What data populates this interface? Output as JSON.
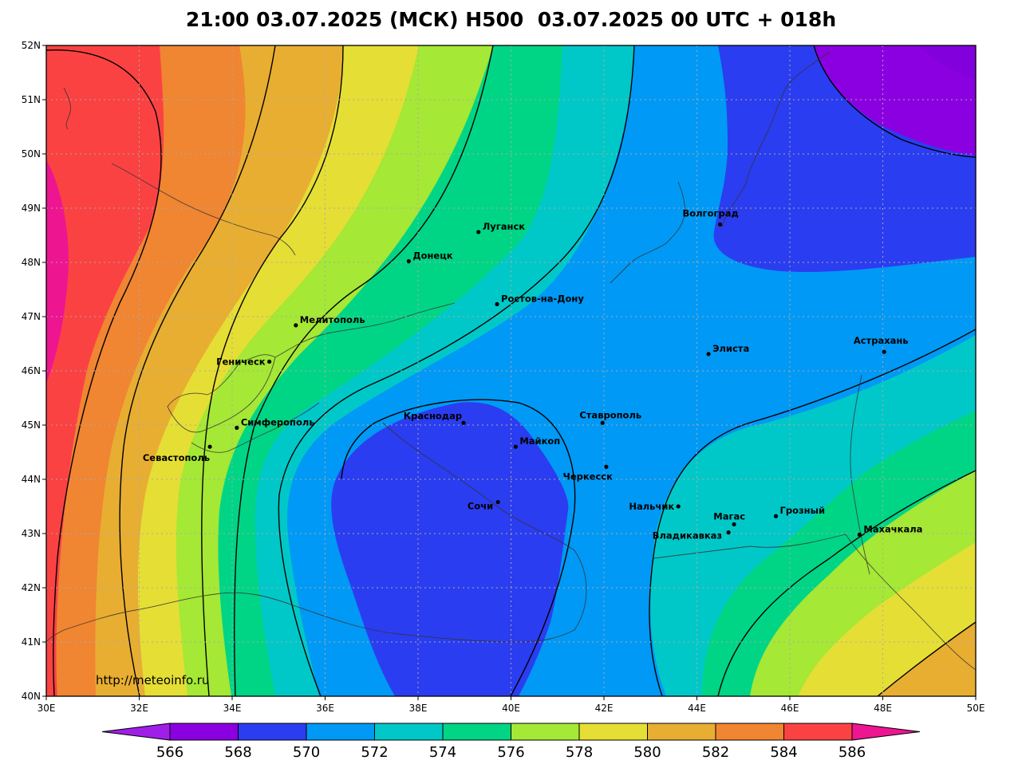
{
  "title": "21:00 03.07.2025 (МСК) H500  03.07.2025 00 UTC + 018h",
  "watermark": "http://meteoinfo.ru",
  "colors": {
    "c566": "#8b00e0",
    "c568": "#2b3df0",
    "c570": "#0099f5",
    "c572": "#00c8c8",
    "c574": "#00d585",
    "c576": "#a5e835",
    "c578": "#e5de35",
    "c580": "#e8ae32",
    "c582": "#f08532",
    "c584": "#fb4242",
    "c586": "#ee1591"
  },
  "colorbar": {
    "values": [
      "566",
      "568",
      "570",
      "572",
      "574",
      "576",
      "578",
      "580",
      "582",
      "584",
      "586"
    ]
  },
  "axes": {
    "x_ticks": [
      "30E",
      "32E",
      "34E",
      "36E",
      "38E",
      "40E",
      "42E",
      "44E",
      "46E",
      "48E",
      "50E"
    ],
    "y_ticks": [
      "52N",
      "51N",
      "50N",
      "49N",
      "48N",
      "47N",
      "46N",
      "45N",
      "44N",
      "43N",
      "42N",
      "41N",
      "40N"
    ]
  },
  "cities": [
    {
      "name": "Луганск",
      "lon": 39.3,
      "lat": 48.56
    },
    {
      "name": "Донецк",
      "lon": 37.8,
      "lat": 48.02
    },
    {
      "name": "Волгоград",
      "lon": 44.5,
      "lat": 48.7
    },
    {
      "name": "Ростов-на-Дону",
      "lon": 39.7,
      "lat": 47.23
    },
    {
      "name": "Мелитополь",
      "lon": 35.37,
      "lat": 46.84
    },
    {
      "name": "Геническ",
      "lon": 34.8,
      "lat": 46.17
    },
    {
      "name": "Элиста",
      "lon": 44.25,
      "lat": 46.31
    },
    {
      "name": "Астрахань",
      "lon": 48.03,
      "lat": 46.35
    },
    {
      "name": "Симферополь",
      "lon": 34.1,
      "lat": 44.95
    },
    {
      "name": "Севастополь",
      "lon": 33.52,
      "lat": 44.6
    },
    {
      "name": "Краснодар",
      "lon": 38.98,
      "lat": 45.04
    },
    {
      "name": "Ставрополь",
      "lon": 41.97,
      "lat": 45.04
    },
    {
      "name": "Майкоп",
      "lon": 40.1,
      "lat": 44.6
    },
    {
      "name": "Черкесск",
      "lon": 42.05,
      "lat": 44.23
    },
    {
      "name": "Сочи",
      "lon": 39.72,
      "lat": 43.58
    },
    {
      "name": "Нальчик",
      "lon": 43.6,
      "lat": 43.5
    },
    {
      "name": "Магас",
      "lon": 44.8,
      "lat": 43.17
    },
    {
      "name": "Грозный",
      "lon": 45.7,
      "lat": 43.32
    },
    {
      "name": "Владикавказ",
      "lon": 44.68,
      "lat": 43.02
    },
    {
      "name": "Махачкала",
      "lon": 47.5,
      "lat": 42.98
    }
  ]
}
